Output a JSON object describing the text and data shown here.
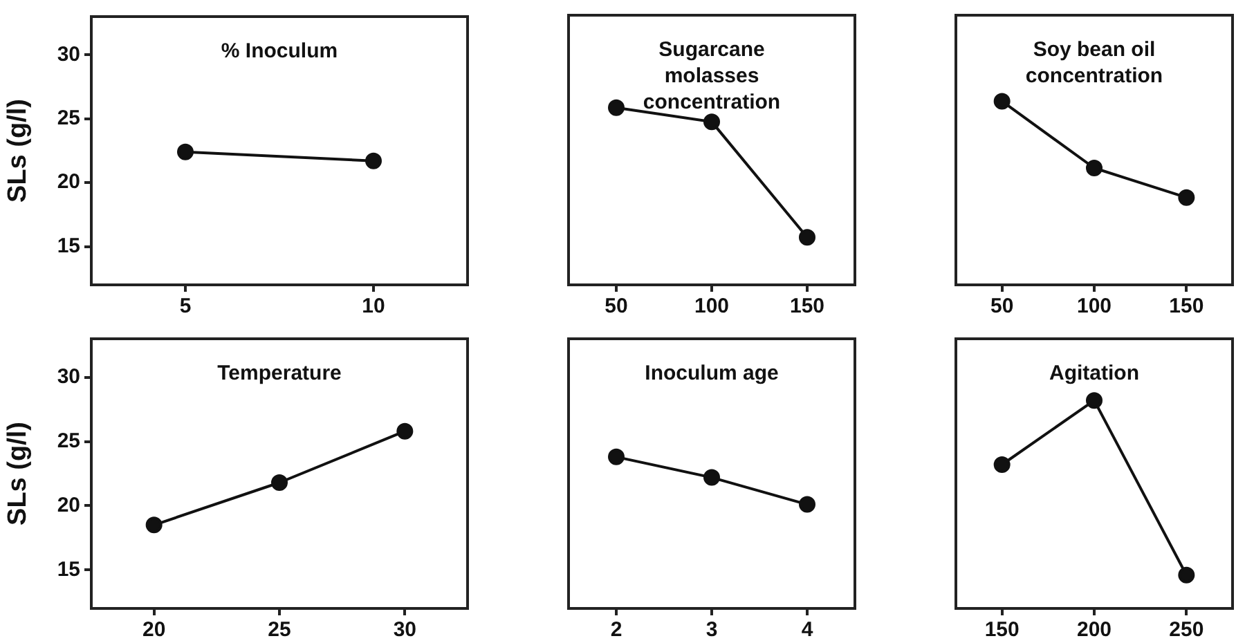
{
  "chart_data": [
    {
      "type": "line",
      "title": "% Inoculum",
      "ylabel": "SLs (g/l)",
      "categories": [
        "5",
        "10"
      ],
      "values": [
        22.4,
        21.7
      ],
      "color": "#111111",
      "ylim": [
        12,
        33
      ],
      "yticks": [
        15,
        20,
        25,
        30
      ],
      "marker": "circle"
    },
    {
      "type": "line",
      "title": "Sugarcane molasses concentration",
      "categories": [
        "50",
        "100",
        "150"
      ],
      "values": [
        25.8,
        24.7,
        15.7
      ],
      "color": "#111111",
      "ylim": [
        12,
        33
      ],
      "yticks": [
        15,
        20,
        25,
        30
      ],
      "marker": "circle",
      "tick_labels": "x"
    },
    {
      "type": "line",
      "title": "Soy bean oil concentration",
      "categories": [
        "50",
        "100",
        "150"
      ],
      "values": [
        26.3,
        21.1,
        18.8
      ],
      "color": "#111111",
      "ylim": [
        12,
        33
      ],
      "yticks": [
        15,
        20,
        25,
        30
      ],
      "marker": "circle",
      "tick_labels": "x"
    },
    {
      "type": "line",
      "title": "Temperature",
      "ylabel": "SLs (g/l)",
      "categories": [
        "20",
        "25",
        "30"
      ],
      "values": [
        18.5,
        21.8,
        25.8
      ],
      "color": "#111111",
      "ylim": [
        12,
        33
      ],
      "yticks": [
        15,
        20,
        25,
        30
      ],
      "marker": "circle"
    },
    {
      "type": "line",
      "title": "Inoculum age",
      "categories": [
        "2",
        "3",
        "4"
      ],
      "values": [
        23.8,
        22.2,
        20.1
      ],
      "color": "#111111",
      "ylim": [
        12,
        33
      ],
      "yticks": [
        15,
        20,
        25,
        30
      ],
      "marker": "circle",
      "tick_labels": "x"
    },
    {
      "type": "line",
      "title": "Agitation",
      "categories": [
        "150",
        "200",
        "250"
      ],
      "values": [
        23.2,
        28.2,
        14.6
      ],
      "color": "#111111",
      "ylim": [
        12,
        33
      ],
      "yticks": [
        15,
        20,
        25,
        30
      ],
      "marker": "circle",
      "tick_labels": "x"
    }
  ]
}
